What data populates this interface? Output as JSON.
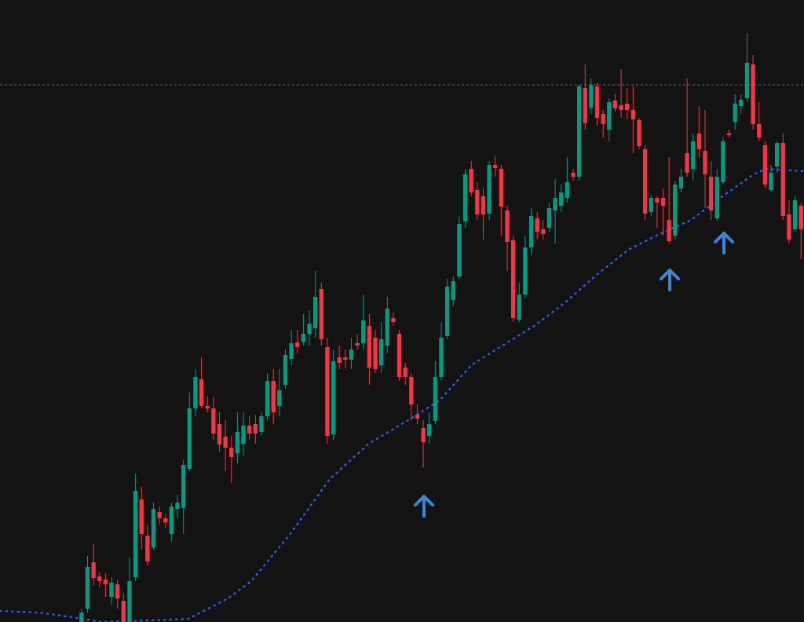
{
  "chart_data": {
    "type": "candlestick",
    "up_color": "#089981",
    "down_color": "#f23645",
    "open": [
      0,
      17,
      76,
      58,
      54,
      32,
      48,
      27,
      0,
      57,
      156,
      110,
      95,
      140,
      132,
      112,
      144,
      145,
      195,
      272,
      309,
      275,
      272,
      252,
      236,
      222,
      215,
      227,
      250,
      252,
      242,
      262,
      307,
      275,
      302,
      335,
      356,
      357,
      367,
      374,
      424,
      350,
      239,
      337,
      337,
      334,
      355,
      355,
      377,
      362,
      327,
      352,
      387,
      367,
      324,
      312,
      264,
      247,
      237,
      256,
      312,
      364,
      410,
      440,
      510,
      577,
      550,
      542,
      520,
      582,
      577,
      524,
      486,
      385,
      417,
      477,
      514,
      500,
      502,
      524,
      530,
      540,
      572,
      567,
      680,
      655,
      682,
      647,
      627,
      664,
      658,
      660,
      652,
      639,
      602,
      522,
      540,
      540,
      512,
      492,
      552,
      597,
      577,
      622,
      600,
      567,
      514,
      560,
      622,
      637,
      657,
      667,
      710,
      634,
      607,
      550,
      580,
      610,
      519,
      500,
      530
    ],
    "high": [
      17,
      84,
      99,
      64,
      62,
      57,
      54,
      37,
      82,
      189,
      172,
      124,
      152,
      147,
      137,
      152,
      162,
      207,
      292,
      322,
      337,
      287,
      287,
      267,
      257,
      237,
      267,
      267,
      262,
      264,
      267,
      317,
      322,
      322,
      347,
      372,
      372,
      392,
      397,
      447,
      432,
      362,
      347,
      352,
      347,
      362,
      367,
      417,
      392,
      372,
      382,
      414,
      394,
      372,
      330,
      317,
      277,
      257,
      267,
      332,
      382,
      437,
      440,
      517,
      577,
      587,
      560,
      552,
      587,
      594,
      582,
      530,
      492,
      432,
      492,
      527,
      522,
      512,
      534,
      564,
      557,
      592,
      577,
      684,
      710,
      692,
      687,
      652,
      667,
      672,
      704,
      680,
      682,
      642,
      607,
      544,
      542,
      552,
      592,
      562,
      577,
      692,
      622,
      657,
      652,
      587,
      577,
      617,
      627,
      672,
      672,
      750,
      722,
      662,
      612,
      582,
      612,
      622,
      537,
      542,
      534
    ],
    "low": [
      0,
      12,
      47,
      44,
      32,
      22,
      17,
      0,
      0,
      52,
      92,
      72,
      92,
      124,
      120,
      102,
      132,
      112,
      192,
      262,
      272,
      267,
      232,
      217,
      192,
      177,
      202,
      212,
      232,
      227,
      237,
      257,
      252,
      262,
      297,
      327,
      342,
      352,
      352,
      362,
      352,
      227,
      232,
      322,
      324,
      322,
      347,
      347,
      302,
      317,
      317,
      342,
      377,
      307,
      302,
      257,
      252,
      197,
      227,
      252,
      307,
      360,
      402,
      437,
      502,
      542,
      512,
      487,
      512,
      567,
      492,
      447,
      382,
      382,
      412,
      467,
      487,
      487,
      497,
      482,
      522,
      534,
      562,
      562,
      627,
      647,
      632,
      617,
      612,
      650,
      642,
      640,
      597,
      602,
      512,
      517,
      502,
      492,
      482,
      487,
      547,
      567,
      562,
      592,
      527,
      512,
      510,
      557,
      617,
      627,
      647,
      662,
      627,
      612,
      552,
      547,
      572,
      512,
      482,
      497,
      462
    ],
    "close": [
      12,
      70,
      56,
      52,
      48,
      50,
      30,
      0,
      52,
      167,
      112,
      77,
      144,
      132,
      127,
      147,
      152,
      200,
      272,
      312,
      275,
      272,
      240,
      226,
      222,
      210,
      242,
      250,
      240,
      240,
      262,
      307,
      267,
      295,
      340,
      355,
      350,
      367,
      380,
      414,
      360,
      237,
      332,
      330,
      334,
      347,
      352,
      384,
      324,
      322,
      360,
      399,
      382,
      312,
      312,
      277,
      259,
      229,
      252,
      312,
      362,
      427,
      434,
      507,
      570,
      547,
      519,
      519,
      582,
      578,
      529,
      484,
      387,
      417,
      477,
      517,
      497,
      494,
      527,
      540,
      547,
      560,
      567,
      682,
      635,
      684,
      642,
      634,
      662,
      654,
      652,
      652,
      640,
      606,
      520,
      540,
      534,
      530,
      485,
      557,
      567,
      572,
      612,
      602,
      570,
      524,
      567,
      612,
      620,
      660,
      665,
      712,
      634,
      617,
      557,
      572,
      610,
      517,
      487,
      537,
      500
    ],
    "xlim": [
      -13.6,
      120.5
    ],
    "ylim": [
      0,
      792
    ],
    "moving_average": {
      "color": "#2962ff",
      "x": [
        -13.6,
        -7.1,
        -0.5,
        3.4,
        17.8,
        24.4,
        28.3,
        34.8,
        41.4,
        47.9,
        54.5,
        59.7,
        65,
        70.2,
        75.5,
        80.7,
        85.9,
        91.2,
        96.4,
        101.7,
        106.9,
        112.1,
        114.1,
        120.5
      ],
      "values": [
        14,
        12,
        5,
        0,
        4,
        30,
        52,
        112,
        182,
        227,
        257,
        282,
        327,
        352,
        377,
        407,
        442,
        474,
        494,
        512,
        542,
        570,
        577,
        574
      ]
    },
    "reference_line": {
      "value": 684,
      "color": "#787b86"
    }
  }
}
